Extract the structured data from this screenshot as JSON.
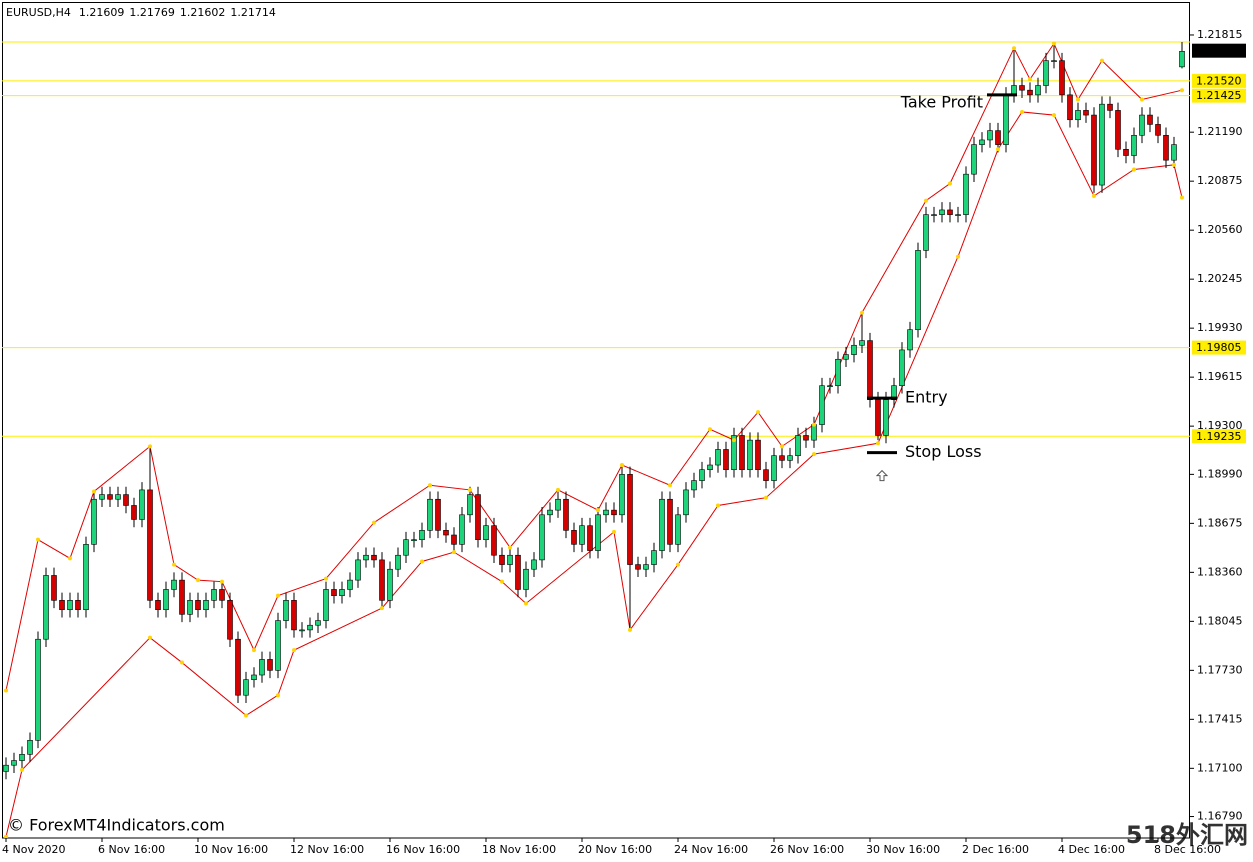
{
  "chart_data": {
    "type": "candlestick",
    "title": "EURUSD,H4",
    "header_values": [
      1.21609,
      1.21769,
      1.21602,
      1.21714
    ],
    "categories": [
      "4 Nov 2020",
      null,
      null,
      null,
      null,
      null,
      null,
      null,
      null,
      null,
      null,
      null,
      "6 Nov 16:00",
      null,
      null,
      null,
      null,
      null,
      null,
      null,
      null,
      null,
      null,
      null,
      "10 Nov 16:00",
      null,
      null,
      null,
      null,
      null,
      null,
      null,
      null,
      null,
      null,
      null,
      "12 Nov 16:00",
      null,
      null,
      null,
      null,
      null,
      null,
      null,
      null,
      null,
      null,
      null,
      "16 Nov 16:00",
      null,
      null,
      null,
      null,
      null,
      null,
      null,
      null,
      null,
      null,
      null,
      "18 Nov 16:00",
      null,
      null,
      null,
      null,
      null,
      null,
      null,
      null,
      null,
      null,
      null,
      "20 Nov 16:00",
      null,
      null,
      null,
      null,
      null,
      null,
      null,
      null,
      null,
      null,
      null,
      "24 Nov 16:00",
      null,
      null,
      null,
      null,
      null,
      null,
      null,
      null,
      null,
      null,
      null,
      "26 Nov 16:00",
      null,
      null,
      null,
      null,
      null,
      null,
      null,
      null,
      null,
      null,
      null,
      "30 Nov 16:00",
      null,
      null,
      null,
      null,
      null,
      null,
      null,
      null,
      null,
      null,
      null,
      "2 Dec 16:00",
      null,
      null,
      null,
      null,
      null,
      null,
      null,
      null,
      null,
      null,
      null,
      "4 Dec 16:00",
      null,
      null,
      null,
      null,
      null,
      null,
      null,
      null,
      null,
      null,
      null,
      "8 Dec 16:00",
      null,
      null,
      null
    ],
    "open": [
      1.1708,
      1.1712,
      1.1715,
      1.1719,
      1.1728,
      1.1793,
      1.1834,
      1.1818,
      1.1812,
      1.1818,
      1.1812,
      1.1854,
      1.1883,
      1.1886,
      1.1883,
      1.1886,
      1.1879,
      1.187,
      1.1889,
      1.1818,
      1.1812,
      1.1825,
      1.1831,
      1.1809,
      1.1818,
      1.1812,
      1.1818,
      1.1825,
      1.1818,
      1.1793,
      1.1757,
      1.1767,
      1.177,
      1.178,
      1.1773,
      1.1805,
      1.1818,
      1.1799,
      1.1799,
      1.1802,
      1.1805,
      1.1825,
      1.1821,
      1.1825,
      1.1831,
      1.1844,
      1.1847,
      1.1844,
      1.1818,
      1.1838,
      1.1847,
      1.1857,
      1.1857,
      1.1863,
      1.1883,
      1.1863,
      1.186,
      1.1854,
      1.1873,
      1.1886,
      1.1857,
      1.1866,
      1.1847,
      1.1841,
      1.1847,
      1.1825,
      1.1838,
      1.1844,
      1.1873,
      1.1876,
      1.1883,
      1.1863,
      1.1854,
      1.1866,
      1.185,
      1.1873,
      1.1876,
      1.1873,
      1.1899,
      1.1841,
      1.1838,
      1.1841,
      1.185,
      1.1883,
      1.1854,
      1.1873,
      1.1889,
      1.1895,
      1.1902,
      1.1905,
      1.1915,
      1.1902,
      1.1924,
      1.1902,
      1.1921,
      1.1902,
      1.1895,
      1.1911,
      1.1908,
      1.1911,
      1.1924,
      1.1921,
      1.1931,
      1.1956,
      1.1956,
      1.1973,
      1.1976,
      1.1982,
      1.1985,
      1.1947,
      1.1924,
      1.1947,
      1.1956,
      1.1979,
      1.1992,
      1.2043,
      1.2066,
      1.2066,
      1.2069,
      1.2066,
      1.2066,
      1.2092,
      1.2111,
      1.2114,
      1.212,
      1.2111,
      1.2143,
      1.2149,
      1.2146,
      1.2143,
      1.2149,
      1.2165,
      1.2165,
      1.2143,
      1.2127,
      1.2133,
      1.213,
      1.2085,
      1.2137,
      1.2133,
      1.2108,
      1.2104,
      1.2117,
      1.213,
      1.2124,
      1.2117,
      1.2101,
      1.2161
    ],
    "high": [
      1.1717,
      1.172,
      1.1724,
      1.1733,
      1.1798,
      1.1839,
      1.1839,
      1.1823,
      1.1823,
      1.1823,
      1.1859,
      1.1888,
      1.1891,
      1.1891,
      1.1891,
      1.1891,
      1.1884,
      1.1894,
      1.1917,
      1.1823,
      1.183,
      1.1836,
      1.1836,
      1.1823,
      1.1823,
      1.1823,
      1.183,
      1.183,
      1.1823,
      1.1798,
      1.1772,
      1.1775,
      1.1785,
      1.1785,
      1.181,
      1.1823,
      1.1823,
      1.1804,
      1.1807,
      1.181,
      1.183,
      1.183,
      1.183,
      1.1836,
      1.1849,
      1.1852,
      1.1852,
      1.1849,
      1.1843,
      1.1852,
      1.1862,
      1.1862,
      1.1868,
      1.1888,
      1.1888,
      1.1868,
      1.1865,
      1.1878,
      1.1891,
      1.1891,
      1.1871,
      1.1871,
      1.1852,
      1.1852,
      1.1852,
      1.1843,
      1.1849,
      1.1878,
      1.1881,
      1.1888,
      1.1888,
      1.1868,
      1.1871,
      1.1871,
      1.1878,
      1.1881,
      1.1881,
      1.1904,
      1.1904,
      1.1846,
      1.1846,
      1.1855,
      1.1888,
      1.1888,
      1.1878,
      1.1894,
      1.19,
      1.1907,
      1.191,
      1.192,
      1.192,
      1.1929,
      1.1929,
      1.1926,
      1.1926,
      1.1907,
      1.1916,
      1.1916,
      1.1916,
      1.1929,
      1.1929,
      1.1936,
      1.1961,
      1.1961,
      1.1978,
      1.1981,
      1.1987,
      1.2003,
      1.199,
      1.1952,
      1.1952,
      1.1961,
      1.1984,
      1.1997,
      1.2048,
      1.2071,
      1.2071,
      1.2074,
      1.2074,
      1.2071,
      1.2097,
      1.2116,
      1.2119,
      1.2125,
      1.2125,
      1.2148,
      1.2173,
      1.2154,
      1.2151,
      1.2154,
      1.217,
      1.2176,
      1.217,
      1.2148,
      1.2138,
      1.2138,
      1.2135,
      1.2142,
      1.2142,
      1.2138,
      1.2113,
      1.2122,
      1.2135,
      1.2135,
      1.2129,
      1.2122,
      1.2116,
      1.2177
    ],
    "low": [
      1.1703,
      1.1707,
      1.171,
      1.1714,
      1.1723,
      1.1788,
      1.1813,
      1.1807,
      1.1807,
      1.1807,
      1.1807,
      1.1849,
      1.1878,
      1.1878,
      1.1878,
      1.1874,
      1.1865,
      1.1865,
      1.1813,
      1.1807,
      1.1807,
      1.182,
      1.1804,
      1.1804,
      1.1807,
      1.1807,
      1.1813,
      1.1813,
      1.1788,
      1.1752,
      1.1752,
      1.1762,
      1.1765,
      1.1768,
      1.1768,
      1.18,
      1.1794,
      1.1794,
      1.1794,
      1.1797,
      1.18,
      1.1816,
      1.1816,
      1.182,
      1.1826,
      1.1839,
      1.1839,
      1.1813,
      1.1813,
      1.1833,
      1.1842,
      1.1852,
      1.1852,
      1.1858,
      1.1858,
      1.1855,
      1.1849,
      1.1849,
      1.1868,
      1.1852,
      1.1852,
      1.1842,
      1.1836,
      1.1836,
      1.182,
      1.182,
      1.1833,
      1.1839,
      1.1868,
      1.1871,
      1.1858,
      1.1849,
      1.1849,
      1.1845,
      1.1845,
      1.1868,
      1.1868,
      1.1868,
      1.1799,
      1.1833,
      1.1833,
      1.1836,
      1.1845,
      1.1849,
      1.1849,
      1.1868,
      1.1884,
      1.189,
      1.1897,
      1.19,
      1.1897,
      1.1897,
      1.1897,
      1.1897,
      1.1897,
      1.189,
      1.189,
      1.1903,
      1.1903,
      1.1906,
      1.1916,
      1.1916,
      1.1926,
      1.1951,
      1.1951,
      1.1968,
      1.1971,
      1.1977,
      1.1942,
      1.1921,
      1.1919,
      1.1942,
      1.1951,
      1.1974,
      1.1987,
      1.2038,
      1.2061,
      1.2061,
      1.2061,
      1.2061,
      1.2061,
      1.2087,
      1.2106,
      1.2109,
      1.2106,
      1.2106,
      1.2138,
      1.2141,
      1.2138,
      1.2138,
      1.2144,
      1.216,
      1.2138,
      1.2122,
      1.2122,
      1.2125,
      1.208,
      1.208,
      1.2128,
      1.2103,
      1.2099,
      1.2099,
      1.2112,
      1.2119,
      1.2112,
      1.2096,
      1.2096,
      1.216
    ],
    "close": [
      1.1712,
      1.1715,
      1.1719,
      1.1728,
      1.1793,
      1.1834,
      1.1818,
      1.1812,
      1.1818,
      1.1812,
      1.1854,
      1.1883,
      1.1886,
      1.1883,
      1.1886,
      1.1879,
      1.187,
      1.1889,
      1.1818,
      1.1812,
      1.1825,
      1.1831,
      1.1809,
      1.1818,
      1.1812,
      1.1818,
      1.1825,
      1.1818,
      1.1793,
      1.1757,
      1.1767,
      1.177,
      1.178,
      1.1773,
      1.1805,
      1.1818,
      1.1799,
      1.1799,
      1.1802,
      1.1805,
      1.1825,
      1.1821,
      1.1825,
      1.1831,
      1.1844,
      1.1847,
      1.1844,
      1.1818,
      1.1838,
      1.1847,
      1.1857,
      1.1857,
      1.1863,
      1.1883,
      1.1863,
      1.186,
      1.1854,
      1.1873,
      1.1886,
      1.1857,
      1.1866,
      1.1847,
      1.1841,
      1.1847,
      1.1825,
      1.1838,
      1.1844,
      1.1873,
      1.1876,
      1.1883,
      1.1863,
      1.1854,
      1.1866,
      1.185,
      1.1873,
      1.1876,
      1.1873,
      1.1899,
      1.1841,
      1.1838,
      1.1841,
      1.185,
      1.1883,
      1.1854,
      1.1873,
      1.1889,
      1.1895,
      1.1902,
      1.1905,
      1.1915,
      1.1902,
      1.1924,
      1.1902,
      1.1921,
      1.1902,
      1.1895,
      1.1911,
      1.1908,
      1.1911,
      1.1924,
      1.1921,
      1.1931,
      1.1956,
      1.1956,
      1.1973,
      1.1976,
      1.1982,
      1.1985,
      1.1947,
      1.1924,
      1.1947,
      1.1956,
      1.1979,
      1.1992,
      1.2043,
      1.2066,
      1.2066,
      1.2069,
      1.2066,
      1.2066,
      1.2092,
      1.2111,
      1.2114,
      1.212,
      1.2111,
      1.2143,
      1.2149,
      1.2146,
      1.2143,
      1.2149,
      1.2165,
      1.2165,
      1.2143,
      1.2127,
      1.2133,
      1.213,
      1.2085,
      1.2137,
      1.2133,
      1.2108,
      1.2104,
      1.2117,
      1.213,
      1.2124,
      1.2117,
      1.2101,
      1.2111,
      1.2171
    ],
    "up_color": "#1ed47a",
    "down_color": "#d50000",
    "upper_envelope": {
      "x": [
        0,
        4,
        8,
        11,
        18,
        21,
        24,
        27,
        31,
        34,
        40,
        46,
        53,
        58,
        63,
        69,
        74,
        77,
        83,
        88,
        91,
        94,
        97,
        101,
        107,
        115,
        118,
        126,
        128,
        131,
        134,
        137,
        142,
        147
      ],
      "values": [
        1.176,
        1.1857,
        1.1845,
        1.1888,
        1.1917,
        1.1841,
        1.1831,
        1.183,
        1.1786,
        1.1821,
        1.1832,
        1.1868,
        1.1892,
        1.1889,
        1.1852,
        1.1889,
        1.1876,
        1.1905,
        1.1892,
        1.1928,
        1.1921,
        1.1939,
        1.1917,
        1.1931,
        1.2003,
        1.2075,
        1.2086,
        1.2173,
        1.2153,
        1.2176,
        1.214,
        1.2165,
        1.214,
        1.2146
      ]
    },
    "lower_envelope": {
      "x": [
        0,
        2,
        18,
        22,
        30,
        34,
        36,
        47,
        52,
        56,
        62,
        65,
        76,
        78,
        84,
        89,
        95,
        101,
        109,
        119,
        124,
        127,
        131,
        136,
        141,
        146,
        147
      ],
      "values": [
        1.1666,
        1.1709,
        1.1794,
        1.1778,
        1.1744,
        1.1757,
        1.1786,
        1.1813,
        1.1843,
        1.1849,
        1.183,
        1.1816,
        1.1862,
        1.1799,
        1.1841,
        1.1879,
        1.1884,
        1.1912,
        1.1919,
        1.2039,
        1.2108,
        1.2132,
        1.213,
        1.2078,
        1.2095,
        1.2098,
        1.2077
      ]
    },
    "envelope_color": "#e00000",
    "vertex_color": "#ffd400",
    "levels": [
      {
        "value": 1.2177
      },
      {
        "value": 1.2152,
        "label": "1.21520"
      },
      {
        "value": 1.21425,
        "label": "1.21425"
      },
      {
        "value": 1.19805,
        "label": "1.19805"
      },
      {
        "value": 1.19235,
        "label": "1.19235"
      }
    ],
    "level_color": "#ffee00",
    "last_price": {
      "value": 1.21714,
      "label": "1.21714"
    },
    "annotations": [
      {
        "text": "Take Profit",
        "value": 1.2143,
        "x": [
          123,
          126
        ]
      },
      {
        "text": "Entry",
        "value": 1.1948,
        "x": [
          108,
          111
        ]
      },
      {
        "text": "Stop Loss",
        "value": 1.1913,
        "x": [
          108,
          111
        ]
      }
    ],
    "ylim": [
      1.16652,
      1.22027
    ],
    "yticks": [
      1.21815,
      {
        "value": 1.2119,
        "label": "1.21190"
      },
      1.20875,
      {
        "value": 1.2056,
        "label": "1.20560"
      },
      1.20245,
      {
        "value": 1.1993,
        "label": "1.19930"
      },
      1.19615,
      {
        "value": 1.193,
        "label": "1.19300"
      },
      {
        "value": 1.1899,
        "label": "1.18990"
      },
      1.18675,
      {
        "value": 1.1836,
        "label": "1.18360"
      },
      1.18045,
      {
        "value": 1.1773,
        "label": "1.17730"
      },
      1.17415,
      {
        "value": 1.171,
        "label": "1.17100"
      },
      {
        "value": 1.1679,
        "label": "1.16790"
      }
    ],
    "watermark": "© ForexMT4Indicators.com",
    "corner_mark": "518外汇网"
  }
}
